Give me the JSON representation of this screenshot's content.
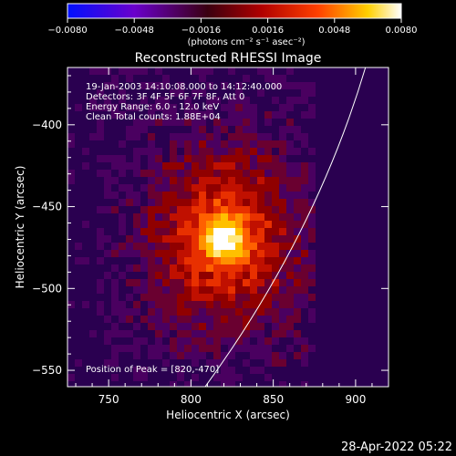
{
  "colorbar": {
    "ticks": [
      "-0.0080",
      "-0.0048",
      "-0.0016",
      "0.0016",
      "0.0048",
      "0.0080"
    ],
    "unit_label": "(photons cm⁻² s⁻¹ asec⁻²)",
    "colors": [
      "#0010ff",
      "#6a00cc",
      "#3a0010",
      "#b00000",
      "#ff4000",
      "#ffd000",
      "#ffffff"
    ]
  },
  "chart_data": {
    "type": "heatmap",
    "title": "Reconstructed RHESSI Image",
    "xlabel": "Heliocentric X (arcsec)",
    "ylabel": "Heliocentric Y (arcsec)",
    "xlim": [
      725,
      920
    ],
    "ylim": [
      -560,
      -365
    ],
    "xticks": [
      750,
      800,
      850,
      900
    ],
    "yticks": [
      -400,
      -450,
      -500,
      -550
    ],
    "peak": [
      820,
      -470
    ],
    "info_lines": [
      "19-Jan-2003 14:10:08.000 to 14:12:40.000",
      "Detectors: 3F 4F 5F 6F 7F 8F, Att 0",
      "Energy Range: 6.0 - 12.0 keV",
      "Clean     Total counts: 1.88E+04"
    ],
    "peak_text": "Position of Peak = [820,-470]"
  },
  "footer": {
    "timestamp": "28-Apr-2022 05:22"
  }
}
